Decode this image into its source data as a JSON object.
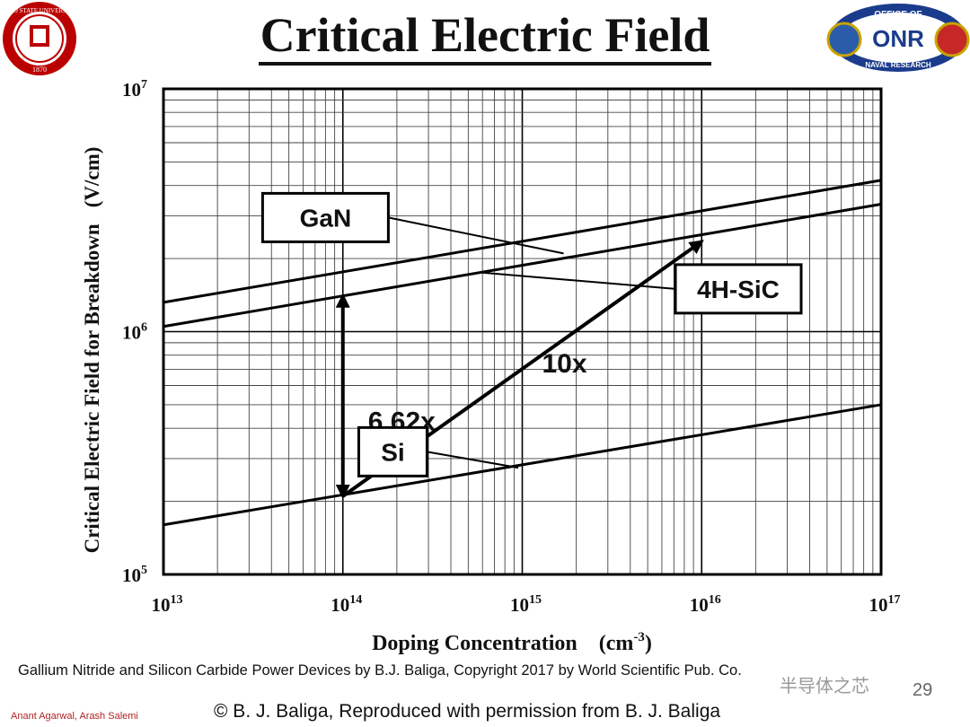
{
  "slide": {
    "title": "Critical Electric Field",
    "caption": "Gallium Nitride and Silicon Carbide Power Devices by B.J. Baliga, Copyright 2017 by World Scientific Pub. Co.",
    "authors": "Anant Agarwal, Arash Salemi",
    "copyright": "© B. J. Baliga,  Reproduced with permission from B. J. Baliga",
    "page_number": "29",
    "watermark": "半导体之芯",
    "logo_left": {
      "name": "university-seal-logo",
      "text_top": "OHIO STATE UNIVERSITY",
      "year": "1870",
      "color": "#bb0000"
    },
    "logo_right": {
      "name": "office-of-naval-research-logo",
      "text_top": "OFFICE OF",
      "text_main": "ONR",
      "text_bottom": "NAVAL RESEARCH"
    }
  },
  "chart_data": {
    "type": "line",
    "xlabel": "Doping Concentration",
    "xunit": "(cm",
    "xunit_exp": "-3",
    "xunit_close": ")",
    "ylabel": "Critical Electric Field for Breakdown",
    "yunit": "(V/cm)",
    "xscale": "log",
    "yscale": "log",
    "xlim": [
      10000000000000.0,
      1e+17
    ],
    "ylim": [
      100000.0,
      10000000.0
    ],
    "grid": true,
    "x_ticks": [
      {
        "value": 10000000000000.0,
        "base": "10",
        "exp": "13"
      },
      {
        "value": 100000000000000.0,
        "base": "10",
        "exp": "14"
      },
      {
        "value": 1000000000000000.0,
        "base": "10",
        "exp": "15"
      },
      {
        "value": 1e+16,
        "base": "10",
        "exp": "16"
      },
      {
        "value": 1e+17,
        "base": "10",
        "exp": "17"
      }
    ],
    "y_ticks": [
      {
        "value": 100000.0,
        "base": "10",
        "exp": "5"
      },
      {
        "value": 1000000.0,
        "base": "10",
        "exp": "6"
      },
      {
        "value": 10000000.0,
        "base": "10",
        "exp": "7"
      }
    ],
    "series": [
      {
        "name": "GaN",
        "x": [
          10000000000000.0,
          1e+17
        ],
        "y": [
          1320000.0,
          4200000.0
        ]
      },
      {
        "name": "4H-SiC",
        "x": [
          10000000000000.0,
          1e+17
        ],
        "y": [
          1050000.0,
          3350000.0
        ]
      },
      {
        "name": "Si",
        "x": [
          10000000000000.0,
          1e+17
        ],
        "y": [
          160000.0,
          500000.0
        ]
      }
    ],
    "labels": [
      {
        "series": "GaN",
        "text": "GaN",
        "box_at": [
          80000000000000.0,
          2950000.0
        ],
        "leader_to": [
          1700000000000000.0,
          2100000.0
        ]
      },
      {
        "series": "4H-SiC",
        "text": "4H-SiC",
        "box_at": [
          1.6e+16,
          1500000.0
        ],
        "leader_to": [
          600000000000000.0,
          1750000.0
        ]
      },
      {
        "series": "Si",
        "text": "Si",
        "box_at": [
          190000000000000.0,
          320000.0
        ],
        "leader_to": [
          950000000000000.0,
          275000.0
        ]
      }
    ],
    "annotations": [
      {
        "text": "6.62x",
        "kind": "double-arrow",
        "from": [
          100000000000000.0,
          210000.0
        ],
        "to": [
          100000000000000.0,
          1400000.0
        ]
      },
      {
        "text": "10x",
        "kind": "arrow",
        "from": [
          100000000000000.0,
          210000.0
        ],
        "to": [
          1e+16,
          2350000.0
        ]
      }
    ]
  }
}
